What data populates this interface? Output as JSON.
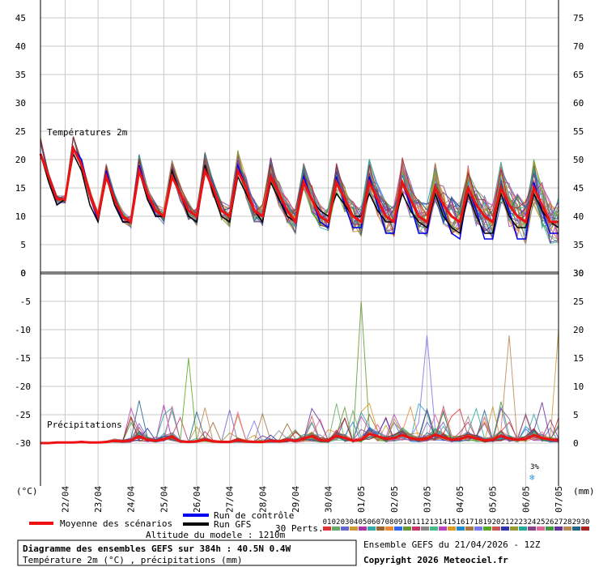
{
  "chart_data": {
    "type": "line",
    "temperature_panel": {
      "label": "Températures 2m",
      "left_ticks": [
        "45",
        "40",
        "35",
        "30",
        "25",
        "20",
        "15",
        "10",
        "5",
        "0"
      ],
      "right_ticks": [
        "75",
        "70",
        "65",
        "60",
        "55",
        "50",
        "45",
        "40",
        "35",
        "30"
      ],
      "ylim": [
        0,
        45
      ],
      "step_hours": 6,
      "average": [
        21,
        17,
        13,
        13,
        22,
        19,
        14,
        10,
        17,
        13,
        10,
        9,
        18,
        14,
        11,
        10,
        17,
        14,
        11,
        10,
        18,
        15,
        11,
        10,
        18,
        15,
        11,
        10,
        17,
        14,
        11,
        9,
        16,
        13,
        10,
        9,
        16,
        13,
        10,
        9,
        16,
        13,
        10,
        9,
        16,
        13,
        10,
        9,
        15,
        12,
        10,
        9,
        15,
        12,
        10,
        9,
        15,
        12,
        10,
        9,
        15,
        12,
        9,
        9
      ],
      "control": [
        21,
        17,
        12,
        13,
        22,
        20,
        14,
        9,
        18,
        13,
        9,
        9,
        19,
        14,
        10,
        10,
        17,
        14,
        10,
        9,
        18,
        15,
        11,
        10,
        19,
        15,
        11,
        9,
        17,
        14,
        10,
        9,
        17,
        13,
        9,
        8,
        17,
        12,
        8,
        8,
        17,
        12,
        7,
        7,
        16,
        12,
        7,
        7,
        15,
        11,
        7,
        6,
        15,
        11,
        6,
        6,
        15,
        11,
        6,
        6,
        16,
        11,
        7,
        7
      ],
      "gfs": [
        21,
        16,
        12,
        13,
        21,
        18,
        12,
        9,
        17,
        12,
        9,
        9,
        18,
        13,
        10,
        10,
        18,
        14,
        10,
        9,
        19,
        14,
        10,
        9,
        17,
        14,
        11,
        9,
        16,
        13,
        10,
        9,
        16,
        13,
        11,
        10,
        14,
        12,
        10,
        10,
        14,
        11,
        9,
        9,
        14,
        11,
        9,
        8,
        14,
        10,
        8,
        7,
        14,
        10,
        7,
        7,
        14,
        10,
        8,
        8,
        14,
        11,
        9,
        8
      ]
    },
    "precip_panel": {
      "label": "Précipitations",
      "left_ticks": [
        "-5",
        "-10",
        "-15",
        "-20",
        "-25",
        "-30"
      ],
      "right_ticks": [
        "25",
        "20",
        "15",
        "10",
        "5",
        "0"
      ],
      "ylim": [
        0,
        25
      ],
      "average": [
        0,
        0,
        0.1,
        0.1,
        0.1,
        0.2,
        0.1,
        0.1,
        0.2,
        0.4,
        0.3,
        0.5,
        1.2,
        0.6,
        0.4,
        0.7,
        1.1,
        0.3,
        0.2,
        0.3,
        0.6,
        0.3,
        0.2,
        0.2,
        0.5,
        0.3,
        0.2,
        0.2,
        0.4,
        0.3,
        0.6,
        0.4,
        0.8,
        1.2,
        0.5,
        0.4,
        1.3,
        0.9,
        0.4,
        0.6,
        1.6,
        1.2,
        0.7,
        0.9,
        1.4,
        0.9,
        0.6,
        0.8,
        1.5,
        1.0,
        0.6,
        0.7,
        1.2,
        0.8,
        0.5,
        0.6,
        1.3,
        0.8,
        0.6,
        0.7,
        1.4,
        0.9,
        0.6,
        0.5
      ],
      "highlights": [
        {
          "step": 18,
          "value": 15
        },
        {
          "step": 39,
          "value": 25
        },
        {
          "step": 47,
          "value": 19
        },
        {
          "step": 57,
          "value": 19
        },
        {
          "step": 63,
          "value": 20
        }
      ]
    },
    "x_labels": [
      "22/04",
      "23/04",
      "24/04",
      "25/04",
      "26/04",
      "27/04",
      "28/04",
      "29/04",
      "30/04",
      "01/05",
      "02/05",
      "03/05",
      "04/05",
      "05/05",
      "06/05",
      "07/05"
    ],
    "left_unit": "(°C)",
    "right_unit": "(mm)",
    "snow_label": "3%"
  },
  "legend": {
    "average": "Moyenne des scénarios",
    "control": "Run de contrôle",
    "gfs": "Run GFS",
    "perts_label": "30 Perts.",
    "perts": [
      "01",
      "02",
      "03",
      "04",
      "05",
      "06",
      "07",
      "08",
      "09",
      "10",
      "11",
      "12",
      "13",
      "14",
      "15",
      "16",
      "17",
      "18",
      "19",
      "20",
      "21",
      "22",
      "23",
      "24",
      "25",
      "26",
      "27",
      "28",
      "29",
      "30"
    ],
    "altitude": "Altitude du modele : 1210m"
  },
  "footer": {
    "title": "Diagramme des ensembles GEFS sur 384h : 40.5N 0.4W",
    "subtitle": "Température 2m (°C) , précipitations (mm)",
    "ensemble": "Ensemble GEFS du 21/04/2026 - 12Z",
    "copyright": "Copyright 2026 Meteociel.fr"
  },
  "colors": {
    "average": "#ee1111",
    "control": "#0000ee",
    "gfs": "#000000",
    "grid": "#c8c8c8",
    "perts": [
      "#dd3333",
      "#66aa66",
      "#6666cc",
      "#cc9933",
      "#aa33aa",
      "#33aaaa",
      "#996633",
      "#ee8833",
      "#3366ee",
      "#669933",
      "#cc3366",
      "#888888",
      "#44bb88",
      "#bb44bb",
      "#dd9922",
      "#2288cc",
      "#aa7744",
      "#7777ee",
      "#55aa22",
      "#cc5555",
      "#3333aa",
      "#999933",
      "#22aa99",
      "#884488",
      "#dd6699",
      "#449944",
      "#663399",
      "#bb8855",
      "#226688",
      "#aa2222"
    ]
  }
}
